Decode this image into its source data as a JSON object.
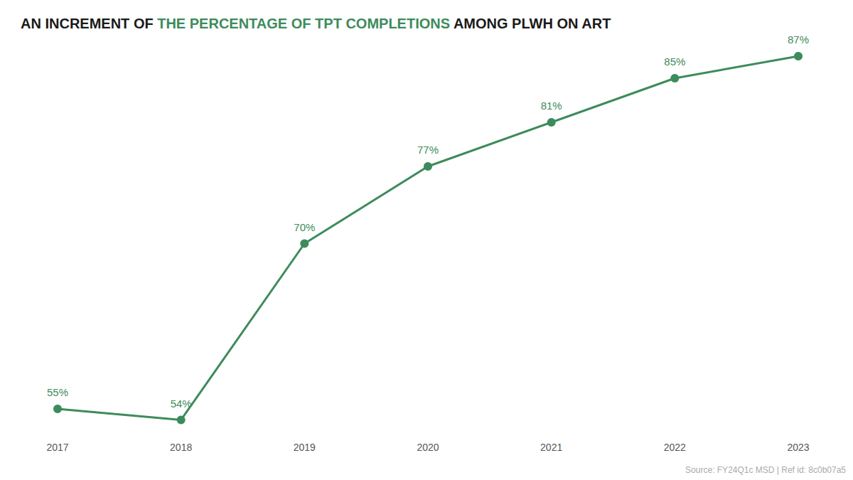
{
  "chart_data": {
    "type": "line",
    "title": "AN INCREMENT OF THE PERCENTAGE OF TPT COMPLETIONS AMONG PLWH ON ART",
    "title_highlight": "THE PERCENTAGE OF TPT COMPLETIONS",
    "source": "Source: FY24Q1c MSD | Ref id: 8c0b07a5",
    "categories": [
      "2017",
      "2018",
      "2019",
      "2020",
      "2021",
      "2022",
      "2023"
    ],
    "values": [
      55,
      54,
      70,
      77,
      81,
      85,
      87
    ],
    "value_labels": [
      "55%",
      "54%",
      "70%",
      "77%",
      "81%",
      "85%",
      "87%"
    ],
    "color": "#3d8b5c",
    "ylim": [
      53,
      89
    ],
    "grid": false,
    "data_labels": true,
    "tick_labels": "x",
    "marker": "circle",
    "line_style": "solid"
  }
}
